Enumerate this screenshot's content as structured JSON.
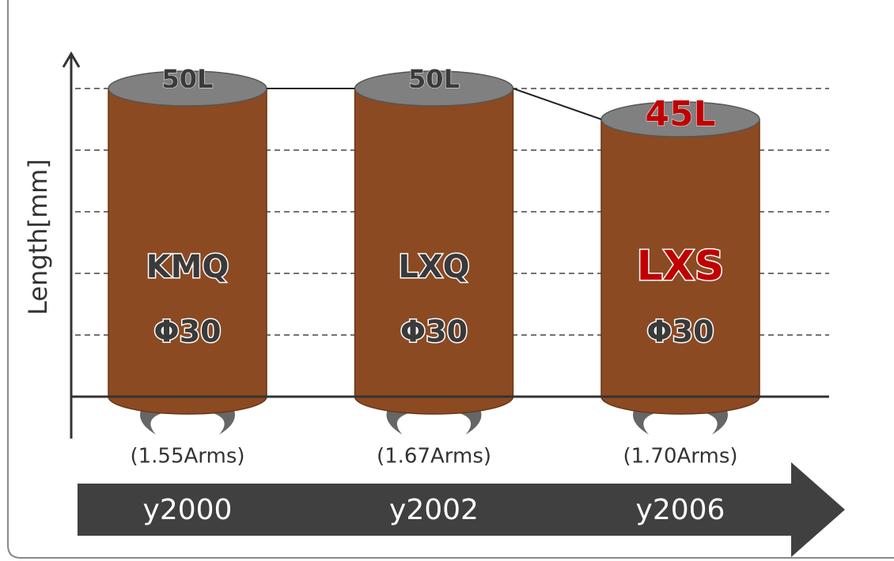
{
  "chart_data": {
    "type": "bar",
    "y_label": "Length[mm]",
    "categories": [
      "y2000",
      "y2002",
      "y2006"
    ],
    "values": [
      50,
      50,
      45
    ],
    "value_labels": [
      "50L",
      "50L",
      "45L"
    ],
    "models": [
      "KMQ",
      "LXQ",
      "LXS"
    ],
    "diameters": [
      "Φ30",
      "Φ30",
      "Φ30"
    ],
    "currents": [
      "(1.55Arms)",
      "(1.67Arms)",
      "(1.70Arms)"
    ],
    "label_colors": [
      "#3a3a3a",
      "#3a3a3a",
      "#c00000"
    ],
    "color": "#8b4a22",
    "top_color": "#808080",
    "ylim": [
      0,
      50
    ],
    "yticks": [
      10,
      20,
      30,
      40,
      50
    ],
    "grid": true
  }
}
